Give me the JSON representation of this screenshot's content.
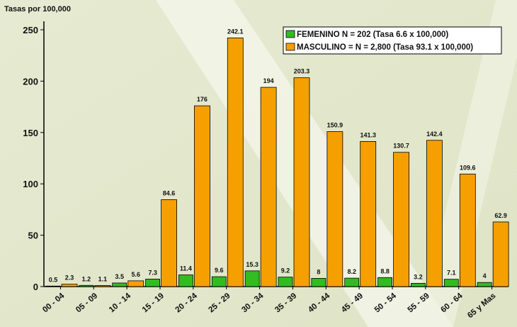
{
  "chart_data": {
    "type": "bar",
    "y_label": "Tasas por 100,000",
    "categories": [
      "00 - 04",
      "05 - 09",
      "10 - 14",
      "15 - 19",
      "20 - 24",
      "25 - 29",
      "30 - 34",
      "35 - 39",
      "40 - 44",
      "45 - 49",
      "50 - 54",
      "55 - 59",
      "60 - 64",
      "65 y Mas"
    ],
    "series": [
      {
        "name": "FEMENINO N = 202 (Tasa 6.6 x 100,000)",
        "color": "#33bb22",
        "values": [
          0.5,
          1.2,
          3.5,
          7.3,
          11.4,
          9.6,
          15.3,
          9.2,
          8,
          8.2,
          8.8,
          3.2,
          7.1,
          4
        ]
      },
      {
        "name": "MASCULINO = N = 2,800 (Tasa 93.1 x 100,000)",
        "color": "#f5a000",
        "values": [
          2.3,
          1.1,
          5.6,
          84.6,
          176,
          242.1,
          194,
          203.3,
          150.9,
          141.3,
          130.7,
          142.4,
          109.6,
          62.9
        ]
      }
    ],
    "ylim": [
      0,
      250
    ],
    "yticks": [
      0,
      50,
      100,
      150,
      200,
      250
    ],
    "legend": "upper right"
  }
}
